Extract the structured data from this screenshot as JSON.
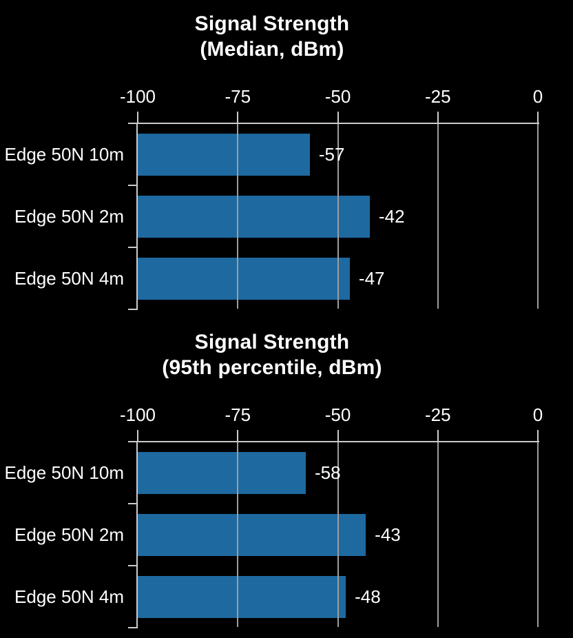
{
  "background": "#000000",
  "text_color": "#ffffff",
  "axis_color": "#cccccc",
  "grid_color": "#9e9e9e",
  "chart_data": [
    {
      "type": "bar",
      "orientation": "horizontal",
      "title_lines": [
        "Signal Strength",
        "(Median, dBm)"
      ],
      "categories": [
        "Edge 50N 10m",
        "Edge 50N 2m",
        "Edge 50N 4m"
      ],
      "values": [
        -57,
        -42,
        -47
      ],
      "data_labels": [
        "-57",
        "-42",
        "-47"
      ],
      "bar_color": "#1e69a0",
      "xlim": [
        -100,
        0
      ],
      "xticks": [
        -100,
        -75,
        -50,
        -25,
        0
      ],
      "xtick_labels": [
        "-100",
        "-75",
        "-50",
        "-25",
        "0"
      ],
      "grid": true,
      "axis_position": "top",
      "legend": null
    },
    {
      "type": "bar",
      "orientation": "horizontal",
      "title_lines": [
        "Signal Strength",
        "(95th percentile, dBm)"
      ],
      "categories": [
        "Edge 50N 10m",
        "Edge 50N 2m",
        "Edge 50N 4m"
      ],
      "values": [
        -58,
        -43,
        -48
      ],
      "data_labels": [
        "-58",
        "-43",
        "-48"
      ],
      "bar_color": "#1e69a0",
      "xlim": [
        -100,
        0
      ],
      "xticks": [
        -100,
        -75,
        -50,
        -25,
        0
      ],
      "xtick_labels": [
        "-100",
        "-75",
        "-50",
        "-25",
        "0"
      ],
      "grid": true,
      "axis_position": "top",
      "legend": null
    }
  ]
}
